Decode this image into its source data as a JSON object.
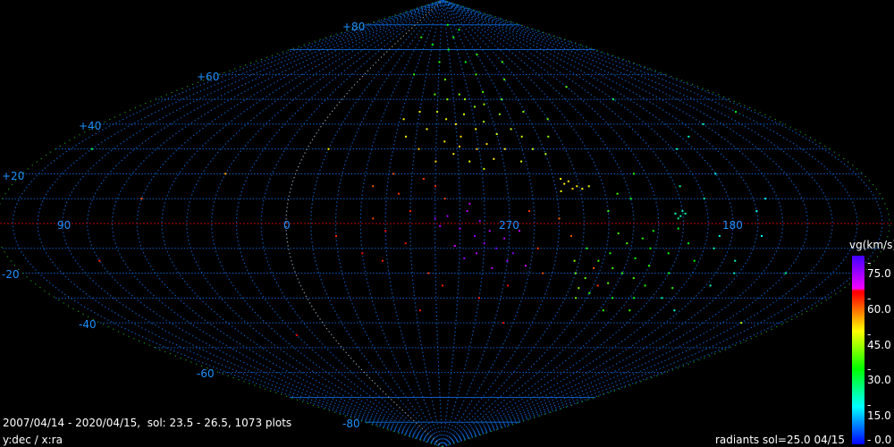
{
  "footer": {
    "summary": "2007/04/14 - 2020/04/15,  sol: 23.5 - 26.5, 1073 plots",
    "axes": "y:dec / x:ra",
    "radiants": "radiants sol=25.0 04/15"
  },
  "colors": {
    "parallel": "#0a5cc0",
    "meridian": "#0a5cc0",
    "ra0_meridian": "#8a9aa8",
    "outline": "#1a8a1a",
    "equator": "#c00000",
    "label": "#1e90ff"
  },
  "chart_data": {
    "type": "scatter",
    "projection": "sinusoidal",
    "xlabel": "ra",
    "ylabel": "dec",
    "grid": true,
    "dec_tick_labels": [
      "+80",
      "+60",
      "+40",
      "+20",
      "-20",
      "-40",
      "-60",
      "-80"
    ],
    "ra_tick_labels": [
      "90",
      "0",
      "270",
      "180"
    ],
    "colorbar": {
      "title": "vg(km/s)",
      "ticks": [
        "75.0",
        "60.0",
        "45.0",
        "30.0",
        "15.0",
        "0.0"
      ],
      "range": [
        0,
        75
      ]
    },
    "points_format": [
      "ra",
      "dec",
      "vg"
    ],
    "points": [
      [
        300,
        45,
        42
      ],
      [
        295,
        42,
        44
      ],
      [
        290,
        40,
        46
      ],
      [
        285,
        44,
        43
      ],
      [
        280,
        38,
        45
      ],
      [
        275,
        41,
        40
      ],
      [
        270,
        36,
        42
      ],
      [
        288,
        35,
        47
      ],
      [
        296,
        33,
        46
      ],
      [
        305,
        38,
        45
      ],
      [
        310,
        45,
        44
      ],
      [
        283,
        50,
        40
      ],
      [
        278,
        47,
        38
      ],
      [
        272,
        48,
        39
      ],
      [
        265,
        44,
        38
      ],
      [
        262,
        38,
        41
      ],
      [
        258,
        35,
        43
      ],
      [
        255,
        30,
        42
      ],
      [
        268,
        30,
        46
      ],
      [
        276,
        32,
        47
      ],
      [
        292,
        28,
        46
      ],
      [
        300,
        25,
        48
      ],
      [
        308,
        30,
        47
      ],
      [
        315,
        35,
        46
      ],
      [
        318,
        42,
        45
      ],
      [
        285,
        25,
        44
      ],
      [
        279,
        22,
        42
      ],
      [
        262,
        25,
        43
      ],
      [
        250,
        28,
        41
      ],
      [
        245,
        35,
        38
      ],
      [
        240,
        42,
        36
      ],
      [
        286,
        52,
        37
      ],
      [
        294,
        50,
        38
      ],
      [
        302,
        52,
        36
      ],
      [
        270,
        53,
        35
      ],
      [
        260,
        50,
        36
      ],
      [
        251,
        45,
        37
      ],
      [
        281,
        30,
        49
      ],
      [
        289,
        31,
        48
      ],
      [
        274,
        26,
        46
      ],
      [
        246,
        16,
        46
      ],
      [
        247,
        18,
        45
      ],
      [
        244,
        17,
        46
      ],
      [
        243,
        14,
        47
      ],
      [
        241,
        15,
        46
      ],
      [
        239,
        14,
        45
      ],
      [
        248,
        13,
        44
      ],
      [
        236,
        15,
        44
      ],
      [
        295,
        3,
        68
      ],
      [
        290,
        -2,
        67
      ],
      [
        287,
        5,
        66
      ],
      [
        284,
        -5,
        70
      ],
      [
        282,
        1,
        68
      ],
      [
        280,
        -8,
        69
      ],
      [
        278,
        -3,
        66
      ],
      [
        275,
        -10,
        71
      ],
      [
        272,
        -6,
        67
      ],
      [
        270,
        -15,
        68
      ],
      [
        268,
        -12,
        70
      ],
      [
        266,
        -3,
        65
      ],
      [
        283,
        -12,
        66
      ],
      [
        288,
        -14,
        69
      ],
      [
        292,
        -9,
        64
      ],
      [
        298,
        -1,
        66
      ],
      [
        300,
        2,
        70
      ],
      [
        262,
        -17,
        65
      ],
      [
        276,
        -18,
        67
      ],
      [
        286,
        8,
        66
      ],
      [
        310,
        5,
        58
      ],
      [
        315,
        12,
        57
      ],
      [
        320,
        -3,
        60
      ],
      [
        325,
        2,
        56
      ],
      [
        318,
        20,
        55
      ],
      [
        305,
        18,
        57
      ],
      [
        300,
        15,
        58
      ],
      [
        296,
        10,
        56
      ],
      [
        312,
        -8,
        59
      ],
      [
        322,
        -15,
        58
      ],
      [
        330,
        -12,
        60
      ],
      [
        326,
        15,
        55
      ],
      [
        303,
        -20,
        57
      ],
      [
        297,
        -25,
        58
      ],
      [
        258,
        -10,
        56
      ],
      [
        254,
        -20,
        55
      ],
      [
        250,
        2,
        54
      ],
      [
        245,
        -5,
        55
      ],
      [
        262,
        5,
        57
      ],
      [
        268,
        -25,
        60
      ],
      [
        280,
        -30,
        58
      ],
      [
        308,
        -35,
        59
      ],
      [
        265,
        -40,
        61
      ],
      [
        233,
        -18,
        55
      ],
      [
        228,
        -25,
        57
      ],
      [
        238,
        -10,
        32
      ],
      [
        232,
        -15,
        34
      ],
      [
        228,
        -12,
        31
      ],
      [
        225,
        -18,
        33
      ],
      [
        222,
        -8,
        35
      ],
      [
        220,
        -20,
        32
      ],
      [
        217,
        -14,
        30
      ],
      [
        214,
        -22,
        34
      ],
      [
        212,
        -10,
        31
      ],
      [
        210,
        -17,
        33
      ],
      [
        207,
        -25,
        32
      ],
      [
        204,
        -12,
        30
      ],
      [
        200,
        -20,
        31
      ],
      [
        197,
        -8,
        29
      ],
      [
        194,
        -26,
        32
      ],
      [
        235,
        -22,
        36
      ],
      [
        230,
        -28,
        33
      ],
      [
        226,
        -4,
        34
      ],
      [
        218,
        -30,
        31
      ],
      [
        212,
        -3,
        30
      ],
      [
        240,
        -20,
        37
      ],
      [
        236,
        -26,
        38
      ],
      [
        224,
        -24,
        35
      ],
      [
        216,
        -6,
        32
      ],
      [
        208,
        -30,
        30
      ],
      [
        202,
        -2,
        28
      ],
      [
        192,
        -15,
        30
      ],
      [
        230,
        5,
        33
      ],
      [
        220,
        10,
        31
      ],
      [
        235,
        -30,
        36
      ],
      [
        242,
        -15,
        38
      ],
      [
        218,
        -35,
        32
      ],
      [
        205,
        -35,
        33
      ],
      [
        225,
        12,
        34
      ],
      [
        215,
        20,
        32
      ],
      [
        201,
        3,
        20
      ],
      [
        200,
        5,
        19
      ],
      [
        202,
        2,
        21
      ],
      [
        199,
        4,
        20
      ],
      [
        203,
        4,
        19
      ],
      [
        190,
        10,
        18
      ],
      [
        185,
        -5,
        17
      ],
      [
        180,
        20,
        16
      ],
      [
        175,
        -15,
        18
      ],
      [
        178,
        -25,
        19
      ],
      [
        170,
        5,
        15
      ],
      [
        188,
        30,
        20
      ],
      [
        195,
        -30,
        21
      ],
      [
        183,
        -35,
        18
      ],
      [
        172,
        -20,
        17
      ],
      [
        165,
        10,
        16
      ],
      [
        198,
        15,
        22
      ],
      [
        186,
        -10,
        20
      ],
      [
        176,
        35,
        18
      ],
      [
        168,
        -5,
        15
      ],
      [
        300,
        65,
        33
      ],
      [
        290,
        70,
        31
      ],
      [
        280,
        75,
        32
      ],
      [
        270,
        60,
        34
      ],
      [
        310,
        72,
        30
      ],
      [
        260,
        68,
        33
      ],
      [
        250,
        58,
        35
      ],
      [
        320,
        60,
        32
      ],
      [
        285,
        80,
        30
      ],
      [
        240,
        65,
        34
      ],
      [
        330,
        75,
        31
      ],
      [
        265,
        78,
        29
      ],
      [
        295,
        58,
        36
      ],
      [
        275,
        65,
        28
      ],
      [
        100,
        30,
        25
      ],
      [
        60,
        10,
        55
      ],
      [
        20,
        -45,
        60
      ],
      [
        150,
        -20,
        22
      ],
      [
        130,
        45,
        28
      ],
      [
        340,
        -5,
        58
      ],
      [
        350,
        30,
        45
      ],
      [
        210,
        55,
        35
      ],
      [
        190,
        50,
        26
      ],
      [
        160,
        40,
        20
      ],
      [
        140,
        -40,
        40
      ],
      [
        30,
        20,
        50
      ],
      [
        80,
        -15,
        58
      ]
    ]
  }
}
